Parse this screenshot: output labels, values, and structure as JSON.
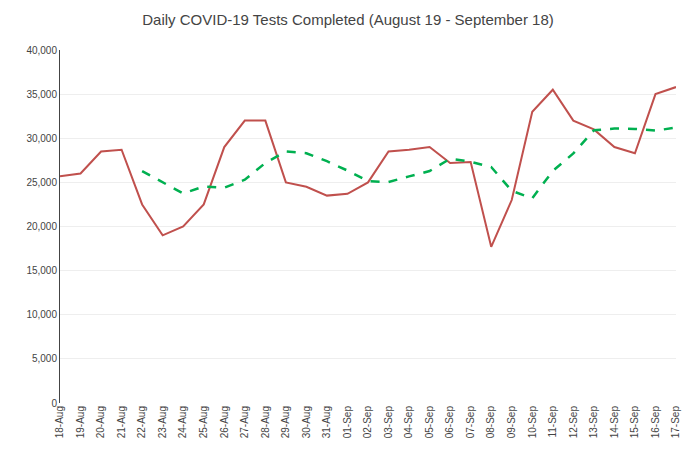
{
  "chart_data": {
    "type": "line",
    "title": "Daily COVID-19 Tests Completed (August 19 - September 18)",
    "categories": [
      "18-Aug",
      "19-Aug",
      "20-Aug",
      "21-Aug",
      "22-Aug",
      "23-Aug",
      "24-Aug",
      "25-Aug",
      "26-Aug",
      "27-Aug",
      "28-Aug",
      "29-Aug",
      "30-Aug",
      "31-Aug",
      "01-Sep",
      "02-Sep",
      "03-Sep",
      "04-Sep",
      "05-Sep",
      "06-Sep",
      "07-Sep",
      "08-Sep",
      "09-Sep",
      "10-Sep",
      "11-Sep",
      "12-Sep",
      "13-Sep",
      "14-Sep",
      "15-Sep",
      "16-Sep",
      "17-Sep"
    ],
    "series": [
      {
        "color": "#C0504D",
        "line_style": "solid",
        "values": [
          25700,
          26000,
          28500,
          28700,
          22500,
          19000,
          20000,
          22500,
          29000,
          32000,
          32000,
          25000,
          24500,
          23500,
          23700,
          25000,
          28500,
          28700,
          29000,
          27200,
          27300,
          17700,
          23000,
          33000,
          35500,
          32000,
          31000,
          29000,
          28300,
          35000,
          35800
        ]
      },
      {
        "color": "#00B050",
        "line_style": "dashed",
        "values": [
          null,
          null,
          null,
          null,
          26280,
          25040,
          23740,
          24540,
          24400,
          25300,
          27200,
          28500,
          28300,
          27400,
          26340,
          25140,
          25040,
          25680,
          26280,
          27680,
          27340,
          26740,
          24040,
          23200,
          26300,
          28280,
          30900,
          31100,
          31060,
          30860,
          31220
        ]
      }
    ],
    "ylim": [
      0,
      40000
    ],
    "yticks": [
      0,
      {
        "value": 5000,
        "label": "5,000"
      },
      {
        "value": 10000,
        "label": "10,000"
      },
      {
        "value": 15000,
        "label": "15,000"
      },
      {
        "value": 20000,
        "label": "20,000"
      },
      {
        "value": 25000,
        "label": "25,000"
      },
      {
        "value": 30000,
        "label": "30,000"
      },
      {
        "value": 35000,
        "label": "35,000"
      },
      {
        "value": 40000,
        "label": "40,000"
      }
    ],
    "grid": true
  }
}
